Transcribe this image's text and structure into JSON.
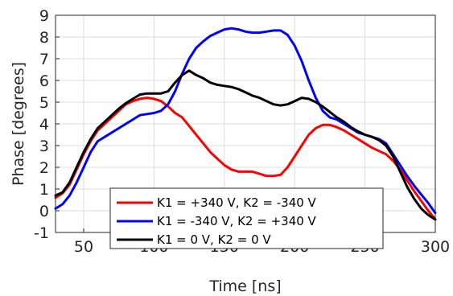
{
  "chart_data": {
    "type": "line",
    "title": "",
    "xlabel": "Time [ns]",
    "ylabel": "Phase [degrees]",
    "xlim": [
      30,
      300
    ],
    "ylim": [
      -1,
      9
    ],
    "xticks": [
      50,
      100,
      150,
      200,
      250,
      300
    ],
    "yticks": [
      -1,
      0,
      1,
      2,
      3,
      4,
      5,
      6,
      7,
      8,
      9
    ],
    "grid": true,
    "legend_position": "bottom-left",
    "series": [
      {
        "name": "K1 = +340 V, K2 = -340 V",
        "color": "#ff0000",
        "x": [
          30,
          35,
          40,
          45,
          50,
          55,
          60,
          65,
          70,
          75,
          80,
          85,
          90,
          95,
          100,
          105,
          110,
          115,
          120,
          125,
          130,
          135,
          140,
          145,
          150,
          155,
          160,
          165,
          170,
          175,
          180,
          185,
          190,
          195,
          200,
          205,
          210,
          215,
          220,
          225,
          230,
          235,
          240,
          245,
          250,
          255,
          260,
          265,
          270,
          275,
          280,
          285,
          290,
          295,
          300
        ],
        "y": [
          0.6,
          0.8,
          1.2,
          1.9,
          2.6,
          3.2,
          3.7,
          4.0,
          4.3,
          4.6,
          4.9,
          5.05,
          5.15,
          5.2,
          5.15,
          5.05,
          4.8,
          4.5,
          4.3,
          3.9,
          3.5,
          3.1,
          2.7,
          2.4,
          2.1,
          1.9,
          1.8,
          1.8,
          1.8,
          1.7,
          1.6,
          1.6,
          1.65,
          2.0,
          2.5,
          3.0,
          3.5,
          3.8,
          3.95,
          3.95,
          3.85,
          3.7,
          3.5,
          3.3,
          3.1,
          2.9,
          2.75,
          2.6,
          2.3,
          1.9,
          1.4,
          0.9,
          0.45,
          0.0,
          -0.4
        ]
      },
      {
        "name": "K1 = -340 V, K2 = +340 V",
        "color": "#0000ff",
        "x": [
          30,
          35,
          40,
          45,
          50,
          55,
          60,
          65,
          70,
          75,
          80,
          85,
          90,
          95,
          100,
          105,
          110,
          115,
          120,
          125,
          130,
          135,
          140,
          145,
          150,
          155,
          160,
          165,
          170,
          175,
          180,
          185,
          190,
          195,
          200,
          205,
          210,
          215,
          220,
          225,
          230,
          235,
          240,
          245,
          250,
          255,
          260,
          265,
          270,
          275,
          280,
          285,
          290,
          295,
          300
        ],
        "y": [
          0.1,
          0.3,
          0.7,
          1.3,
          2.0,
          2.7,
          3.2,
          3.4,
          3.6,
          3.8,
          4.0,
          4.2,
          4.4,
          4.45,
          4.5,
          4.6,
          4.9,
          5.5,
          6.3,
          7.0,
          7.5,
          7.8,
          8.05,
          8.2,
          8.35,
          8.4,
          8.35,
          8.25,
          8.2,
          8.2,
          8.25,
          8.3,
          8.3,
          8.1,
          7.6,
          6.9,
          6.0,
          5.2,
          4.6,
          4.3,
          4.2,
          4.0,
          3.8,
          3.6,
          3.5,
          3.4,
          3.3,
          3.1,
          2.6,
          2.1,
          1.6,
          1.15,
          0.75,
          0.35,
          -0.1
        ]
      },
      {
        "name": "K1 = 0 V, K2 = 0 V",
        "color": "#000000",
        "x": [
          30,
          35,
          40,
          45,
          50,
          55,
          60,
          65,
          70,
          75,
          80,
          85,
          90,
          95,
          100,
          105,
          110,
          115,
          120,
          125,
          130,
          135,
          140,
          145,
          150,
          155,
          160,
          165,
          170,
          175,
          180,
          185,
          190,
          195,
          200,
          205,
          210,
          215,
          220,
          225,
          230,
          235,
          240,
          245,
          250,
          255,
          260,
          265,
          270,
          275,
          280,
          285,
          290,
          295,
          300
        ],
        "y": [
          0.7,
          0.85,
          1.3,
          2.0,
          2.7,
          3.3,
          3.8,
          4.1,
          4.4,
          4.7,
          4.95,
          5.15,
          5.35,
          5.4,
          5.4,
          5.4,
          5.5,
          5.9,
          6.25,
          6.45,
          6.25,
          6.1,
          5.9,
          5.8,
          5.75,
          5.7,
          5.6,
          5.45,
          5.3,
          5.2,
          5.05,
          4.9,
          4.85,
          4.9,
          5.05,
          5.2,
          5.15,
          5.0,
          4.8,
          4.55,
          4.3,
          4.1,
          3.85,
          3.65,
          3.5,
          3.4,
          3.25,
          3.0,
          2.5,
          1.8,
          1.1,
          0.55,
          0.1,
          -0.2,
          -0.4
        ]
      }
    ]
  }
}
